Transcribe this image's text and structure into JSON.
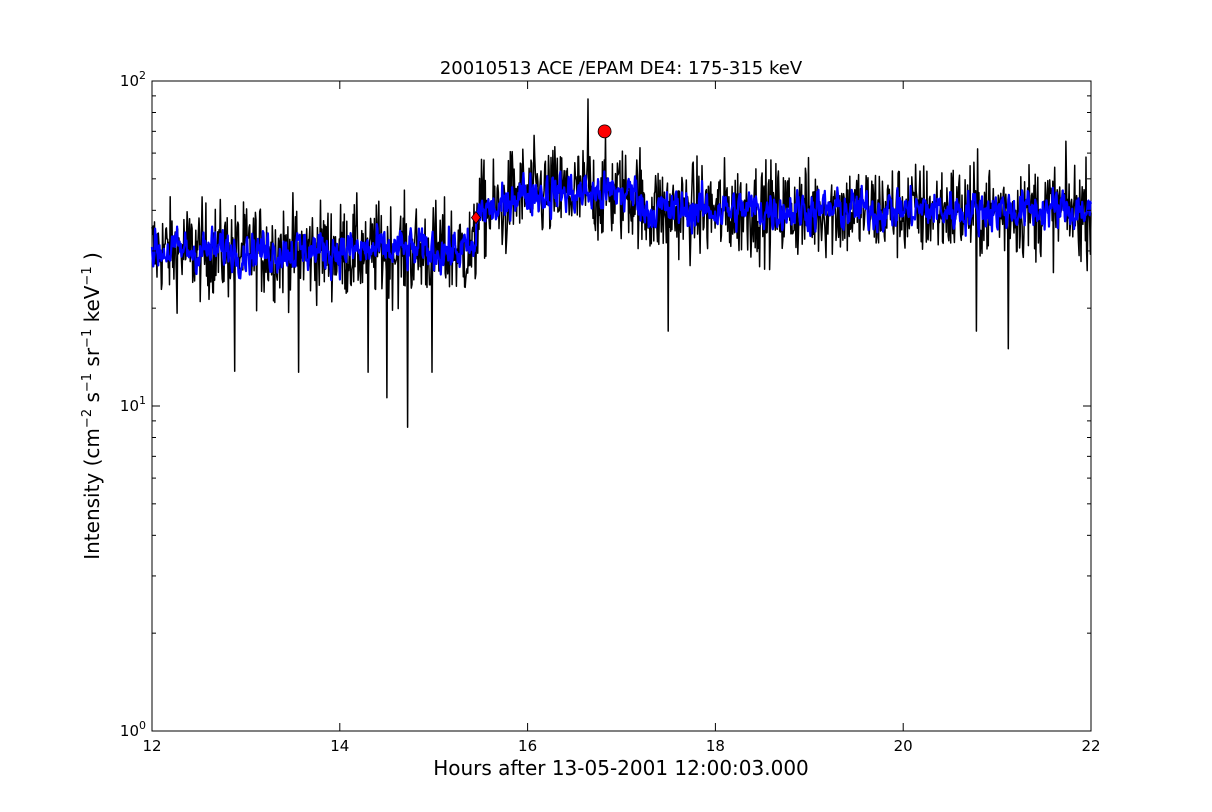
{
  "chart_data": {
    "type": "line",
    "title": "20010513 ACE /EPAM DE4: 175-315 keV",
    "xlabel": "Hours after 13-05-2001 12:00:03.000",
    "ylabel": {
      "prefix": "Intensity (cm",
      "sup1": "−2",
      "mid1": " s",
      "sup2": "−1",
      "mid2": " sr",
      "sup3": "−1",
      "mid3": " keV",
      "sup4": "−1",
      "suffix": " )"
    },
    "x_range": [
      12,
      22
    ],
    "y_range": [
      1,
      100
    ],
    "y_scale": "log",
    "x_ticks": [
      12,
      14,
      16,
      18,
      20,
      22
    ],
    "y_ticks": [
      {
        "value": 1,
        "base": "10",
        "exp": "0"
      },
      {
        "value": 10,
        "base": "10",
        "exp": "1"
      },
      {
        "value": 100,
        "base": "10",
        "exp": "2"
      }
    ],
    "grid": false,
    "series": [
      {
        "style": "raw-noisy",
        "color": "#000000",
        "segments": [
          {
            "x0": 12.0,
            "x1": 15.45,
            "mean": 30
          },
          {
            "x0": 15.45,
            "x1": 15.8,
            "mean": 40
          },
          {
            "x0": 15.8,
            "x1": 17.2,
            "mean": 45
          },
          {
            "x0": 17.2,
            "x1": 22.0,
            "mean": 40
          }
        ],
        "extremes": [
          {
            "x": 12.88,
            "y": 12.8
          },
          {
            "x": 13.56,
            "y": 12.7
          },
          {
            "x": 14.3,
            "y": 12.7
          },
          {
            "x": 14.5,
            "y": 10.6
          },
          {
            "x": 14.72,
            "y": 8.6
          },
          {
            "x": 14.98,
            "y": 12.7
          },
          {
            "x": 16.64,
            "y": 88
          },
          {
            "x": 17.5,
            "y": 17
          },
          {
            "x": 20.78,
            "y": 17
          },
          {
            "x": 21.12,
            "y": 15
          }
        ]
      },
      {
        "style": "smoothed",
        "color": "#0000ff",
        "segments": [
          {
            "x0": 12.0,
            "x1": 15.45,
            "mean": 30
          },
          {
            "x0": 15.45,
            "x1": 15.8,
            "mean": 40
          },
          {
            "x0": 15.8,
            "x1": 17.2,
            "mean": 45
          },
          {
            "x0": 17.2,
            "x1": 22.0,
            "mean": 40
          }
        ]
      }
    ],
    "markers": [
      {
        "shape": "diamond",
        "x": 15.45,
        "y": 38,
        "color": "#ff0000"
      },
      {
        "shape": "circle",
        "x": 16.82,
        "y": 70,
        "color": "#ff0000"
      }
    ]
  }
}
